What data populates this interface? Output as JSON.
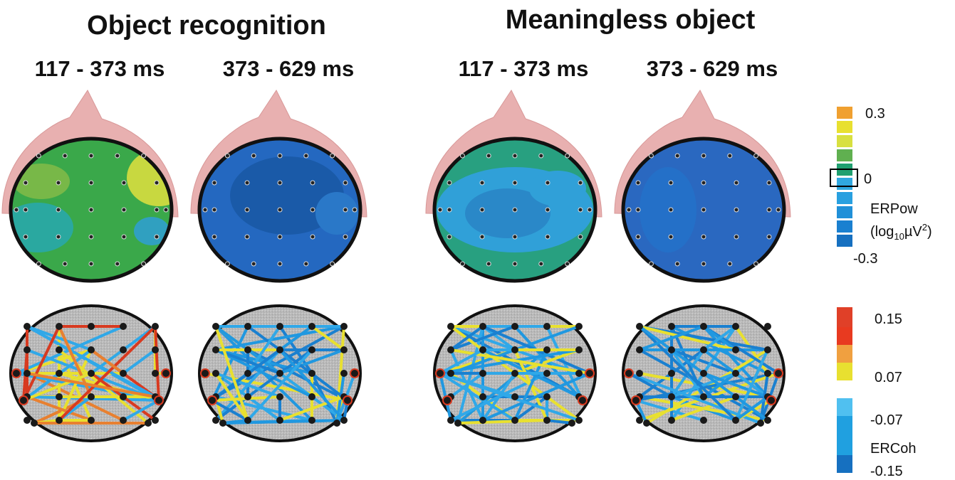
{
  "groups": [
    {
      "title": "Object recognition",
      "panels": [
        "117 - 373 ms",
        "373 - 629 ms"
      ]
    },
    {
      "title": "Meaningless object",
      "panels": [
        "117 - 373 ms",
        "373 - 629 ms"
      ]
    }
  ],
  "erpow_legend": {
    "labels": [
      "0.3",
      "0",
      "-0.3"
    ],
    "title": "ERPow",
    "unit": {
      "prefix": "(log",
      "sub": "10",
      "mid": "µV",
      "sup": "2",
      "suffix": ")"
    }
  },
  "ercoh_legend": {
    "labels": [
      "0.15",
      "0.07",
      "-0.07",
      "-0.15"
    ],
    "title": "ERCoh"
  }
}
